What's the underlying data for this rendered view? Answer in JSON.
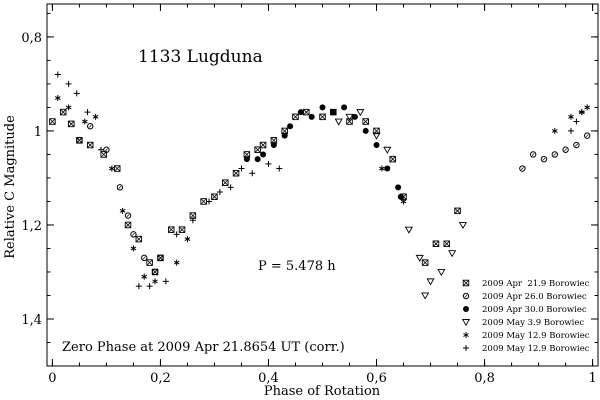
{
  "chart_data": {
    "type": "scatter",
    "title": "1133 Lugduna",
    "xlabel": "Phase of Rotation",
    "ylabel": "Relative C Magnitude",
    "xlim": [
      -0.01,
      1.01
    ],
    "ylim": [
      1.5,
      0.73
    ],
    "y_inverted": true,
    "grid": false,
    "legend_position": "bottom-right",
    "x_ticks": [
      0,
      0.2,
      0.4,
      0.6,
      0.8,
      1
    ],
    "x_tick_labels": [
      "0",
      "0,2",
      "0,4",
      "0,6",
      "0,8",
      "1"
    ],
    "y_ticks": [
      0.8,
      1.0,
      1.2,
      1.4
    ],
    "y_tick_labels": [
      "0,8",
      "1",
      "1,2",
      "1,4"
    ],
    "annotations": {
      "period": "P = 5.478 h",
      "zero_phase": "Zero Phase at 2009 Apr 21.8654 UT (corr.)"
    },
    "series": [
      {
        "name": "2009 Apr  21.9 Borowiec",
        "marker": "boxed-x",
        "points": [
          [
            0.0,
            0.98
          ],
          [
            0.02,
            0.96
          ],
          [
            0.035,
            0.985
          ],
          [
            0.05,
            1.02
          ],
          [
            0.07,
            1.03
          ],
          [
            0.095,
            1.05
          ],
          [
            0.12,
            1.08
          ],
          [
            0.14,
            1.2
          ],
          [
            0.16,
            1.23
          ],
          [
            0.18,
            1.28
          ],
          [
            0.19,
            1.3
          ],
          [
            0.2,
            1.27
          ],
          [
            0.22,
            1.21
          ],
          [
            0.24,
            1.21
          ],
          [
            0.26,
            1.18
          ],
          [
            0.28,
            1.15
          ],
          [
            0.3,
            1.14
          ],
          [
            0.32,
            1.11
          ],
          [
            0.34,
            1.09
          ],
          [
            0.36,
            1.05
          ],
          [
            0.38,
            1.04
          ],
          [
            0.39,
            1.03
          ],
          [
            0.41,
            1.02
          ],
          [
            0.43,
            1.0
          ],
          [
            0.45,
            0.97
          ],
          [
            0.47,
            0.96
          ],
          [
            0.5,
            0.97
          ],
          [
            0.52,
            0.96
          ],
          [
            0.55,
            0.98
          ],
          [
            0.58,
            0.98
          ],
          [
            0.6,
            1.0
          ],
          [
            0.63,
            1.06
          ],
          [
            0.65,
            1.14
          ],
          [
            0.69,
            1.28
          ],
          [
            0.71,
            1.24
          ],
          [
            0.73,
            1.24
          ],
          [
            0.75,
            1.17
          ]
        ]
      },
      {
        "name": "2009 Apr 26.0 Borowiec",
        "marker": "circle",
        "points": [
          [
            0.05,
            1.02
          ],
          [
            0.07,
            0.99
          ],
          [
            0.1,
            1.04
          ],
          [
            0.125,
            1.12
          ],
          [
            0.14,
            1.18
          ],
          [
            0.15,
            1.22
          ],
          [
            0.17,
            1.27
          ],
          [
            0.19,
            1.3
          ],
          [
            0.2,
            1.27
          ],
          [
            0.87,
            1.08
          ],
          [
            0.89,
            1.05
          ],
          [
            0.91,
            1.06
          ],
          [
            0.93,
            1.05
          ],
          [
            0.95,
            1.04
          ],
          [
            0.97,
            1.03
          ],
          [
            0.99,
            1.01
          ]
        ]
      },
      {
        "name": "2009 Apr 30.0 Borowiec",
        "marker": "filled-circle",
        "points": [
          [
            0.36,
            1.06
          ],
          [
            0.38,
            1.06
          ],
          [
            0.39,
            1.05
          ],
          [
            0.41,
            1.03
          ],
          [
            0.43,
            1.01
          ],
          [
            0.44,
            0.99
          ],
          [
            0.46,
            0.96
          ],
          [
            0.48,
            0.97
          ],
          [
            0.5,
            0.95
          ],
          [
            0.52,
            0.96
          ],
          [
            0.54,
            0.95
          ],
          [
            0.56,
            0.97
          ],
          [
            0.58,
            1.0
          ],
          [
            0.6,
            1.03
          ],
          [
            0.62,
            1.08
          ],
          [
            0.64,
            1.12
          ],
          [
            0.645,
            1.14
          ]
        ]
      },
      {
        "name": "2009 May 3.9 Borowiec",
        "marker": "triangle-down",
        "points": [
          [
            0.53,
            0.98
          ],
          [
            0.55,
            0.97
          ],
          [
            0.57,
            0.96
          ],
          [
            0.6,
            1.01
          ],
          [
            0.62,
            1.04
          ],
          [
            0.66,
            1.21
          ],
          [
            0.68,
            1.27
          ],
          [
            0.7,
            1.32
          ],
          [
            0.72,
            1.3
          ],
          [
            0.74,
            1.26
          ],
          [
            0.76,
            1.2
          ],
          [
            0.69,
            1.35
          ]
        ]
      },
      {
        "name": "2009 May 12.9 Borowiec",
        "marker": "asterisk",
        "points": [
          [
            0.01,
            0.93
          ],
          [
            0.03,
            0.95
          ],
          [
            0.06,
            0.98
          ],
          [
            0.08,
            0.97
          ],
          [
            0.11,
            1.08
          ],
          [
            0.13,
            1.17
          ],
          [
            0.15,
            1.25
          ],
          [
            0.17,
            1.31
          ],
          [
            0.19,
            1.32
          ],
          [
            0.23,
            1.28
          ],
          [
            0.25,
            1.23
          ],
          [
            0.61,
            1.08
          ],
          [
            0.65,
            1.15
          ],
          [
            0.93,
            1.0
          ],
          [
            0.96,
            0.97
          ],
          [
            0.98,
            0.96
          ],
          [
            0.99,
            0.95
          ]
        ]
      },
      {
        "name": "2009 May 12.9 Borowiec",
        "marker": "plus",
        "points": [
          [
            0.01,
            0.88
          ],
          [
            0.03,
            0.9
          ],
          [
            0.045,
            0.92
          ],
          [
            0.065,
            0.96
          ],
          [
            0.09,
            1.04
          ],
          [
            0.16,
            1.33
          ],
          [
            0.18,
            1.33
          ],
          [
            0.21,
            1.32
          ],
          [
            0.23,
            1.22
          ],
          [
            0.26,
            1.19
          ],
          [
            0.29,
            1.15
          ],
          [
            0.31,
            1.13
          ],
          [
            0.33,
            1.12
          ],
          [
            0.35,
            1.08
          ],
          [
            0.37,
            1.09
          ],
          [
            0.4,
            1.07
          ],
          [
            0.42,
            1.08
          ],
          [
            0.96,
            1.0
          ],
          [
            0.97,
            0.98
          ],
          [
            0.98,
            0.96
          ]
        ]
      }
    ]
  }
}
